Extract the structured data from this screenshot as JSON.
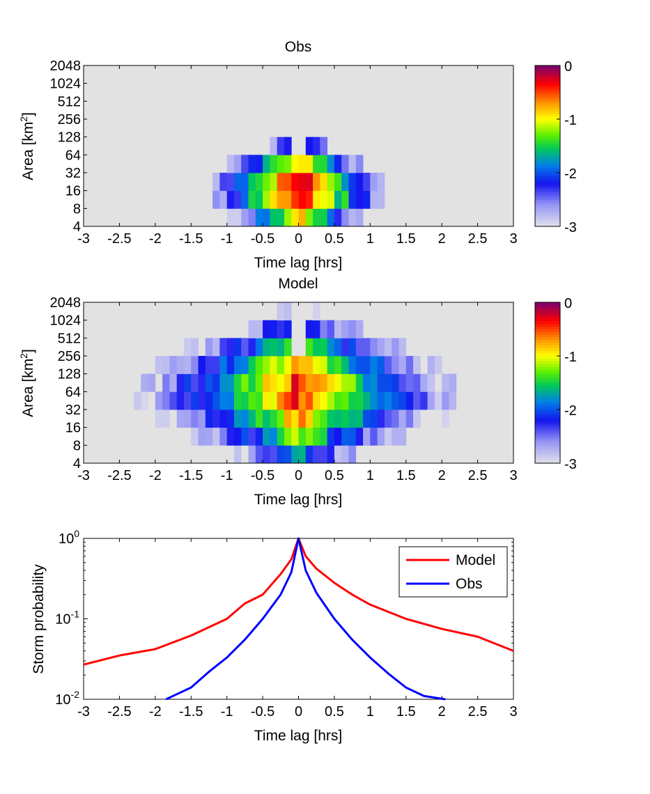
{
  "chart_data": [
    {
      "type": "heatmap",
      "title": "Obs",
      "xlabel": "Time lag [hrs]",
      "ylabel": "Area [km",
      "ylabel_sup": "2",
      "ylabel_end": "]",
      "xlim": [
        -3,
        3
      ],
      "xticks": [
        "-3",
        "-2.5",
        "-2",
        "-1.5",
        "-1",
        "-0.5",
        "0",
        "0.5",
        "1",
        "1.5",
        "2",
        "2.5",
        "3"
      ],
      "yticks": [
        "4",
        "8",
        "16",
        "32",
        "64",
        "128",
        "256",
        "512",
        "1024",
        "2048"
      ],
      "colorbar": {
        "ticks": [
          "0",
          "-1",
          "-2",
          "-3"
        ],
        "range": [
          -3,
          0
        ]
      },
      "grid": {
        "x_bin_hrs": 0.1,
        "y_centers_log2": [
          2.5,
          3.5,
          4.5,
          5.5,
          6.5,
          7.5,
          8.5,
          9.5,
          10.5
        ],
        "params": {
          "center_level": 0.0,
          "center_decay": 0.55,
          "y_peak_log2": 4.0,
          "y_width": 1.6,
          "x_width": 1.1,
          "gap": 0.08,
          "threshold": -2.95,
          "high_size_cut": 10.5
        }
      }
    },
    {
      "type": "heatmap",
      "title": "Model",
      "xlabel": "Time lag [hrs]",
      "ylabel": "Area [km",
      "ylabel_sup": "2",
      "ylabel_end": "]",
      "xlim": [
        -3,
        3
      ],
      "xticks": [
        "-3",
        "-2.5",
        "-2",
        "-1.5",
        "-1",
        "-0.5",
        "0",
        "0.5",
        "1",
        "1.5",
        "2",
        "2.5",
        "3"
      ],
      "yticks": [
        "4",
        "8",
        "16",
        "32",
        "64",
        "128",
        "256",
        "512",
        "1024",
        "2048"
      ],
      "colorbar": {
        "ticks": [
          "0",
          "-1",
          "-2",
          "-3"
        ],
        "range": [
          -3,
          0
        ]
      },
      "grid": {
        "x_bin_hrs": 0.1,
        "y_centers_log2": [
          2.5,
          3.5,
          4.5,
          5.5,
          6.5,
          7.5,
          8.5,
          9.5,
          10.5
        ],
        "params": {
          "center_level": -0.35,
          "center_decay": 0.4,
          "y_peak_log2": 6.0,
          "y_width": 2.6,
          "x_width": 2.2,
          "gap": 0.1,
          "threshold": -2.95,
          "high_size_cut": 11.5
        }
      }
    },
    {
      "type": "line",
      "xlabel": "Time lag [hrs]",
      "ylabel": "Storm probability",
      "xlim": [
        -3,
        3
      ],
      "ylim": [
        0.01,
        1
      ],
      "yscale": "log",
      "xticks": [
        "-3",
        "-2.5",
        "-2",
        "-1.5",
        "-1",
        "-0.5",
        "0",
        "0.5",
        "1",
        "1.5",
        "2",
        "2.5",
        "3"
      ],
      "yticks": [
        {
          "base": "10",
          "exp": "0"
        },
        {
          "base": "10",
          "exp": "-1"
        },
        {
          "base": "10",
          "exp": "-2"
        }
      ],
      "legend": "top-right",
      "series": [
        {
          "name": "Model",
          "color": "#ff0000",
          "x": [
            -3,
            -2.5,
            -2,
            -1.5,
            -1,
            -0.75,
            -0.5,
            -0.25,
            -0.1,
            0,
            0.1,
            0.25,
            0.5,
            0.75,
            1,
            1.5,
            2,
            2.5,
            3
          ],
          "y": [
            0.027,
            0.035,
            0.042,
            0.062,
            0.1,
            0.155,
            0.2,
            0.36,
            0.55,
            1.0,
            0.6,
            0.42,
            0.28,
            0.2,
            0.15,
            0.1,
            0.075,
            0.06,
            0.04
          ]
        },
        {
          "name": "Obs",
          "color": "#0000ff",
          "x": [
            -1.85,
            -1.5,
            -1.25,
            -1,
            -0.75,
            -0.5,
            -0.25,
            -0.1,
            0,
            0.1,
            0.25,
            0.5,
            0.75,
            1,
            1.25,
            1.5,
            1.75,
            2.05
          ],
          "y": [
            0.01,
            0.014,
            0.022,
            0.033,
            0.055,
            0.1,
            0.2,
            0.38,
            1.0,
            0.4,
            0.21,
            0.1,
            0.055,
            0.033,
            0.021,
            0.014,
            0.011,
            0.0095
          ]
        }
      ]
    }
  ]
}
